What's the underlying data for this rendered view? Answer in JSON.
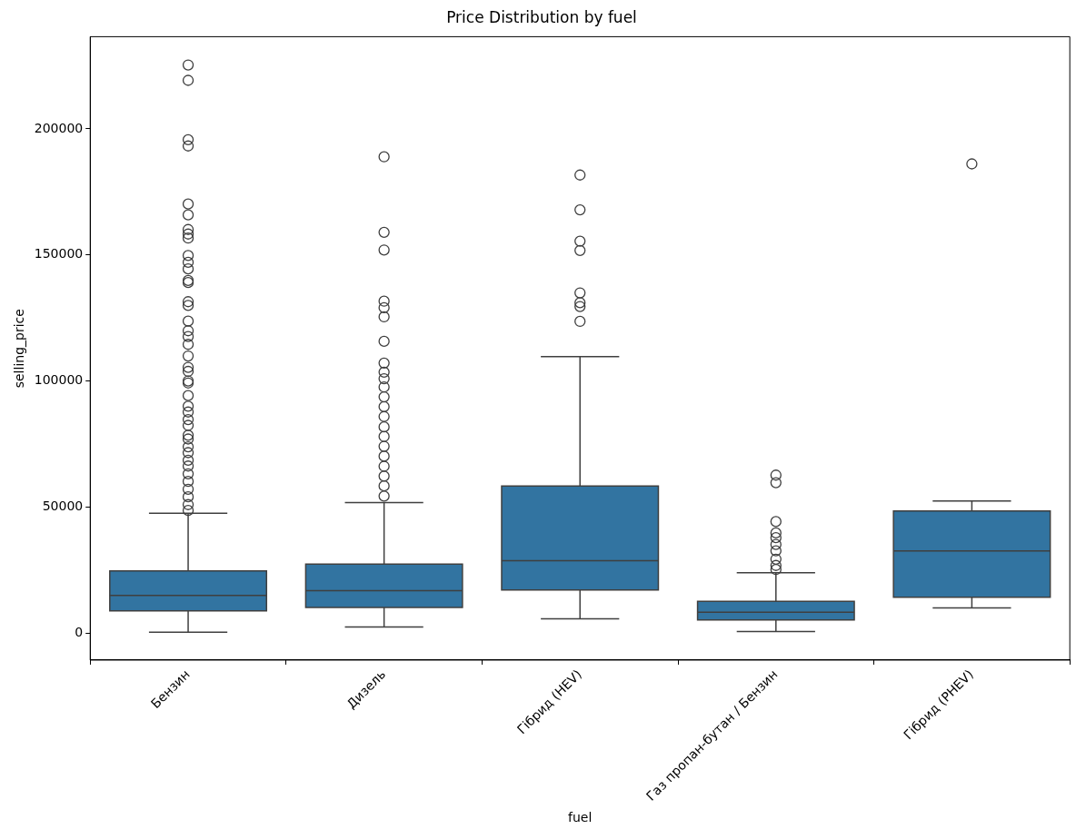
{
  "chart_data": {
    "type": "box",
    "title": "Price Distribution by fuel",
    "xlabel": "fuel",
    "ylabel": "selling_price",
    "categories": [
      "Бензин",
      "Дизель",
      "Гібрид (HEV)",
      "Газ пропан-бутан / Бензин",
      "Гібрид (PHEV)"
    ],
    "color": "#3274a1",
    "boxes": [
      {
        "low": 600,
        "q1": 9000,
        "median": 15100,
        "q3": 24800,
        "high": 47700,
        "outliers": [
          225300,
          219200,
          195700,
          193200,
          170200,
          165900,
          160100,
          158300,
          156700,
          149800,
          147100,
          144500,
          139900,
          139100,
          131500,
          130000,
          123800,
          120000,
          117700,
          114600,
          110000,
          105500,
          103900,
          100100,
          99300,
          94300,
          90100,
          87800,
          84800,
          82500,
          78600,
          77100,
          74000,
          71700,
          68700,
          66400,
          63300,
          60300,
          57200,
          54200,
          51100,
          48800
        ]
      },
      {
        "low": 2600,
        "q1": 10400,
        "median": 17000,
        "q3": 27500,
        "high": 51900,
        "outliers": [
          188900,
          159000,
          152000,
          131700,
          129100,
          125500,
          115800,
          107200,
          103600,
          101000,
          97700,
          93800,
          89900,
          86000,
          81900,
          78100,
          74200,
          70300,
          66300,
          62400,
          58500,
          54500
        ]
      },
      {
        "low": 5900,
        "q1": 17300,
        "median": 28900,
        "q3": 58500,
        "high": 109700,
        "outliers": [
          181700,
          167900,
          155500,
          151800,
          135000,
          131100,
          129600,
          123700
        ]
      },
      {
        "low": 800,
        "q1": 5400,
        "median": 8500,
        "q3": 12800,
        "high": 24100,
        "outliers": [
          62800,
          59800,
          44400,
          39900,
          38000,
          35300,
          32800,
          29500,
          27000,
          25400
        ]
      },
      {
        "low": 10200,
        "q1": 14400,
        "median": 32800,
        "q3": 48600,
        "high": 52500,
        "outliers": [
          186100
        ]
      }
    ],
    "ylim": [
      -10500,
      236500
    ],
    "yticks": [
      0,
      50000,
      100000,
      150000,
      200000
    ],
    "grid": false,
    "legend": false
  }
}
